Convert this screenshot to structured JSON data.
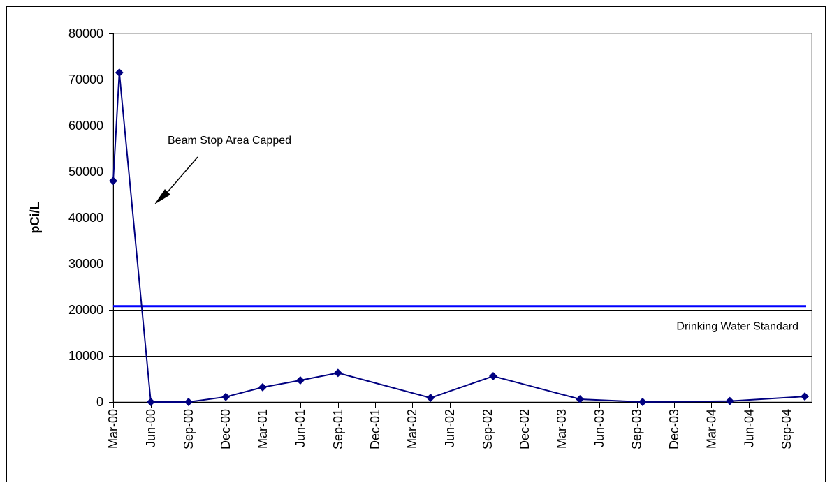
{
  "chart_data": {
    "type": "line",
    "title": "",
    "xlabel": "",
    "ylabel": "pCi/L",
    "ylim": [
      0,
      80000
    ],
    "y_ticks": [
      0,
      10000,
      20000,
      30000,
      40000,
      50000,
      60000,
      70000,
      80000
    ],
    "x_range": [
      "2000-03-01",
      "2004-11-01"
    ],
    "categories": [
      "Mar-00",
      "Jun-00",
      "Sep-00",
      "Dec-00",
      "Mar-01",
      "Jun-01",
      "Sep-01",
      "Dec-01",
      "Mar-02",
      "Jun-02",
      "Sep-02",
      "Dec-02",
      "Mar-03",
      "Jun-03",
      "Sep-03",
      "Dec-03",
      "Mar-04",
      "Jun-04",
      "Sep-04"
    ],
    "grid": "horizontal",
    "legend": "none",
    "series": [
      {
        "color": "#000080",
        "marker": "diamond",
        "points": [
          {
            "x": "2000-03-01",
            "y": 48000
          },
          {
            "x": "2000-03-16",
            "y": 71500
          },
          {
            "x": "2000-06-01",
            "y": 0
          },
          {
            "x": "2000-09-01",
            "y": 0
          },
          {
            "x": "2000-12-01",
            "y": 1100
          },
          {
            "x": "2001-03-01",
            "y": 3200
          },
          {
            "x": "2001-06-01",
            "y": 4700
          },
          {
            "x": "2001-09-01",
            "y": 6300
          },
          {
            "x": "2002-04-15",
            "y": 900
          },
          {
            "x": "2002-09-15",
            "y": 5600
          },
          {
            "x": "2003-04-15",
            "y": 600
          },
          {
            "x": "2003-09-15",
            "y": 0
          },
          {
            "x": "2004-04-15",
            "y": 200
          },
          {
            "x": "2004-10-15",
            "y": 1200
          }
        ]
      }
    ],
    "reference_lines": [
      {
        "y": 20800,
        "label": "Drinking Water Standard",
        "color": "#0000ff"
      }
    ],
    "annotations": [
      {
        "text": "Beam Stop Area Capped",
        "arrow": true
      }
    ]
  }
}
